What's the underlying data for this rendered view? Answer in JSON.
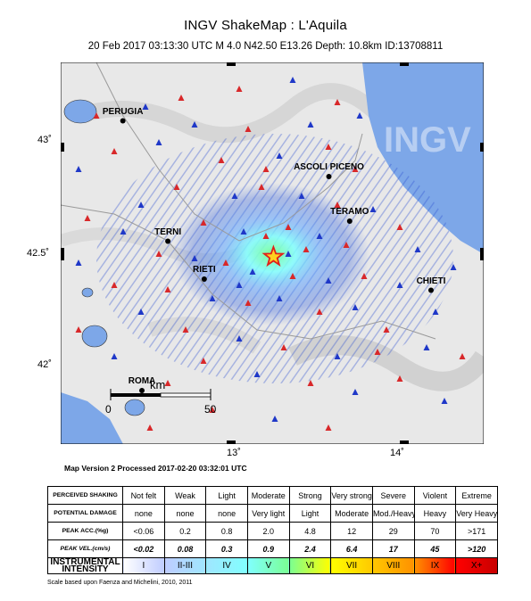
{
  "header": {
    "title": "INGV ShakeMap : L'Aquila",
    "subtitle": "20 Feb 2017 03:13:30 UTC   M 4.0   N42.50 E13.26   Depth: 10.8km   ID:13708811"
  },
  "map": {
    "lat_ticks": [
      "43˚",
      "42.5˚",
      "42˚"
    ],
    "lon_ticks": [
      "13˚",
      "14˚"
    ],
    "watermark": "INGV",
    "cities": [
      {
        "name": "PERUGIA",
        "lon": 12.39,
        "lat": 43.11
      },
      {
        "name": "ASCOLI PICENO",
        "lon": 13.58,
        "lat": 42.86
      },
      {
        "name": "TERAMO",
        "lon": 13.7,
        "lat": 42.66
      },
      {
        "name": "TERNI",
        "lon": 12.65,
        "lat": 42.57
      },
      {
        "name": "RIETI",
        "lon": 12.86,
        "lat": 42.4
      },
      {
        "name": "CHIETI",
        "lon": 14.17,
        "lat": 42.35
      },
      {
        "name": "ROMA",
        "lon": 12.5,
        "lat": 41.9
      }
    ],
    "epicenter": {
      "lon": 13.26,
      "lat": 42.5
    },
    "scalebar": {
      "start": "0",
      "end": "50",
      "unit": "km"
    },
    "colors": {
      "sea": "#7da7e8",
      "land": "#e8e8e8",
      "station_up": "#d8282a",
      "station_down": "#1f38c8"
    }
  },
  "footer": {
    "processed": "Map Version 2 Processed 2017-02-20 03:32:01 UTC",
    "scale_note": "Scale based upon Faenza and Michelini, 2010, 2011"
  },
  "legend": {
    "rows": [
      {
        "label": "PERCEIVED SHAKING",
        "cells": [
          "Not felt",
          "Weak",
          "Light",
          "Moderate",
          "Strong",
          "Very strong",
          "Severe",
          "Violent",
          "Extreme"
        ]
      },
      {
        "label": "POTENTIAL DAMAGE",
        "cells": [
          "none",
          "none",
          "none",
          "Very light",
          "Light",
          "Moderate",
          "Mod./Heavy",
          "Heavy",
          "Very Heavy"
        ]
      },
      {
        "label": "PEAK ACC.(%g)",
        "cells": [
          "<0.06",
          "0.2",
          "0.8",
          "2.0",
          "4.8",
          "12",
          "29",
          "70",
          ">171"
        ]
      },
      {
        "label": "PEAK VEL.(cm/s)",
        "cells": [
          "<0.02",
          "0.08",
          "0.3",
          "0.9",
          "2.4",
          "6.4",
          "17",
          "45",
          ">120"
        ]
      },
      {
        "label": "INSTRUMENTAL INTENSITY",
        "cells": [
          "I",
          "II-III",
          "IV",
          "V",
          "VI",
          "VII",
          "VIII",
          "IX",
          "X+"
        ]
      }
    ],
    "intensity_colors": [
      "#ffffff",
      "#bfccff",
      "#a0e6ff",
      "#80ffff",
      "#7aff93",
      "#ffff00",
      "#ffc800",
      "#ff9100",
      "#ff0000",
      "#c80000"
    ]
  }
}
